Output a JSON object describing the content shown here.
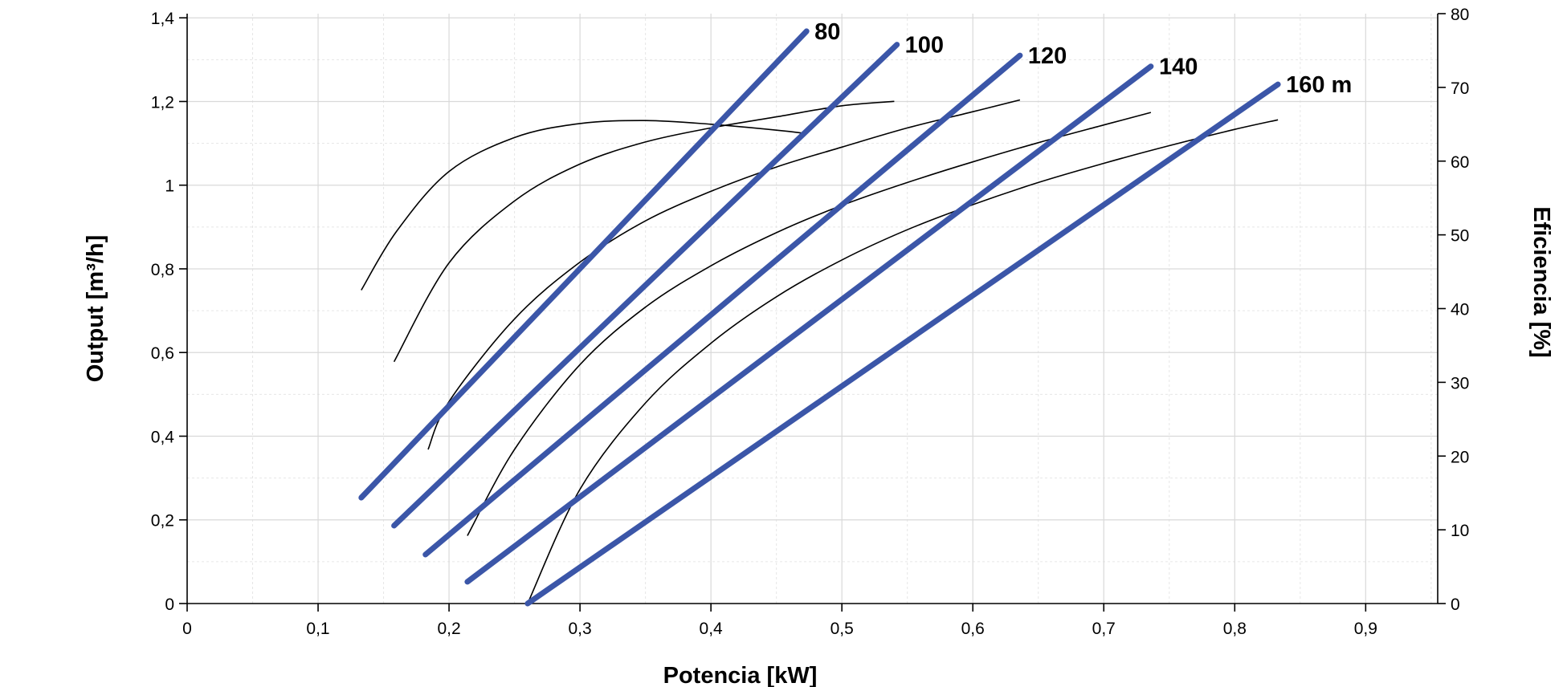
{
  "chart_data": {
    "type": "line",
    "xlabel": "Potencia [kW]",
    "ylabel": "Output [m³/h]",
    "y2label": "Eficiencia [%]",
    "xlim": [
      0,
      0.955
    ],
    "ylim": [
      0,
      1.41
    ],
    "y2lim": [
      0,
      80
    ],
    "x_ticks": [
      "0",
      "0,1",
      "0,2",
      "0,3",
      "0,4",
      "0,5",
      "0,6",
      "0,7",
      "0,8",
      "0,9"
    ],
    "x_tick_values": [
      0,
      0.1,
      0.2,
      0.3,
      0.4,
      0.5,
      0.6,
      0.7,
      0.8,
      0.9
    ],
    "y_ticks": [
      "0",
      "0,2",
      "0,4",
      "0,6",
      "0,8",
      "1",
      "1,2",
      "1,4"
    ],
    "y_tick_values": [
      0,
      0.2,
      0.4,
      0.6,
      0.8,
      1.0,
      1.2,
      1.4
    ],
    "y2_ticks": [
      "0",
      "10",
      "20",
      "30",
      "40",
      "50",
      "60",
      "70",
      "80"
    ],
    "y2_tick_values": [
      0,
      10,
      20,
      30,
      40,
      50,
      60,
      70,
      80
    ],
    "grid": true,
    "legend": "none",
    "colors": {
      "output": "#3b56a8",
      "efficiency": "#000000"
    },
    "series": [
      {
        "name": "80",
        "axis": "left",
        "x": [
          0.133,
          0.473
        ],
        "y": [
          0.253,
          1.368
        ]
      },
      {
        "name": "100",
        "axis": "left",
        "x": [
          0.158,
          0.542
        ],
        "y": [
          0.186,
          1.336
        ]
      },
      {
        "name": "120",
        "axis": "left",
        "x": [
          0.182,
          0.636
        ],
        "y": [
          0.117,
          1.31
        ]
      },
      {
        "name": "140",
        "axis": "left",
        "x": [
          0.214,
          0.736
        ],
        "y": [
          0.052,
          1.284
        ]
      },
      {
        "name": "160 m",
        "axis": "left",
        "x": [
          0.26,
          0.833
        ],
        "y": [
          0.0,
          1.241
        ]
      }
    ],
    "efficiency_curves": [
      {
        "axis": "right",
        "x": [
          0.133,
          0.16,
          0.2,
          0.25,
          0.3,
          0.35,
          0.4,
          0.45,
          0.47
        ],
        "y": [
          42.5,
          50.5,
          58.6,
          63.2,
          65.1,
          65.5,
          65.0,
          64.2,
          63.8
        ]
      },
      {
        "axis": "right",
        "x": [
          0.158,
          0.2,
          0.25,
          0.3,
          0.35,
          0.4,
          0.45,
          0.5,
          0.54
        ],
        "y": [
          32.8,
          46.2,
          54.6,
          59.6,
          62.6,
          64.5,
          66.0,
          67.5,
          68.1
        ]
      },
      {
        "axis": "right",
        "x": [
          0.184,
          0.2,
          0.25,
          0.3,
          0.35,
          0.4,
          0.45,
          0.5,
          0.55,
          0.6,
          0.636
        ],
        "y": [
          20.9,
          27.4,
          38.6,
          46.3,
          51.9,
          55.9,
          59.2,
          61.9,
          64.5,
          66.7,
          68.3
        ]
      },
      {
        "axis": "right",
        "x": [
          0.214,
          0.25,
          0.3,
          0.35,
          0.4,
          0.45,
          0.5,
          0.55,
          0.6,
          0.65,
          0.7,
          0.736
        ],
        "y": [
          9.2,
          20.9,
          32.4,
          40.2,
          45.8,
          50.3,
          54.0,
          57.1,
          59.9,
          62.5,
          64.9,
          66.6
        ]
      },
      {
        "axis": "right",
        "x": [
          0.26,
          0.3,
          0.35,
          0.4,
          0.45,
          0.5,
          0.55,
          0.6,
          0.65,
          0.7,
          0.75,
          0.8,
          0.833
        ],
        "y": [
          0.0,
          15.5,
          27.2,
          35.3,
          41.6,
          46.6,
          50.7,
          54.1,
          57.1,
          59.7,
          62.1,
          64.3,
          65.6
        ]
      }
    ]
  }
}
